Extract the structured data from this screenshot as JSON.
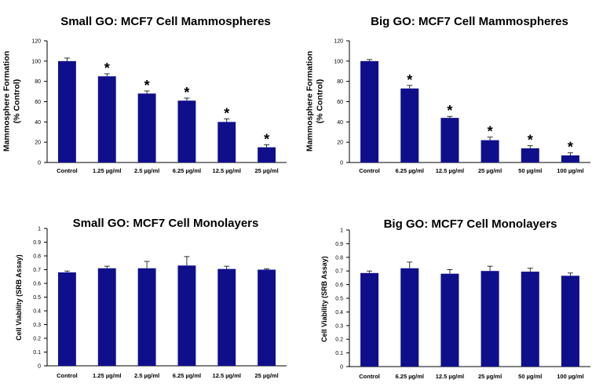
{
  "chart_data": [
    {
      "type": "bar",
      "title": "Small GO: MCF7 Cell Mammospheres",
      "ylabel": [
        "Mammosphere Formation",
        "(% Control)"
      ],
      "xlabel": "",
      "ylim": [
        0,
        120
      ],
      "yticks": [
        0,
        20,
        40,
        60,
        80,
        100,
        120
      ],
      "categories": [
        "Control",
        "1.25 µg/ml",
        "2.5 µg/ml",
        "6.25 µg/ml",
        "12.5 µg/ml",
        "25 µg/ml"
      ],
      "values": [
        100,
        85,
        68,
        61,
        40,
        15
      ],
      "errors": [
        3,
        2.5,
        2.5,
        2.5,
        3,
        2.5
      ],
      "significant": [
        false,
        true,
        true,
        true,
        true,
        true
      ],
      "significance_marker": "*"
    },
    {
      "type": "bar",
      "title": "Big GO: MCF7 Cell Mammospheres",
      "ylabel": [
        "Mammosphere Formation",
        "(% Control)"
      ],
      "xlabel": "",
      "ylim": [
        0,
        120
      ],
      "yticks": [
        0,
        20,
        40,
        60,
        80,
        100,
        120
      ],
      "categories": [
        "Control",
        "6.25 µg/ml",
        "12.5 µg/ml",
        "25 µg/ml",
        "50 µg/ml",
        "100 µg/ml"
      ],
      "values": [
        100,
        73,
        44,
        22,
        14,
        7
      ],
      "errors": [
        1.5,
        3,
        1.5,
        3,
        2.5,
        2.5
      ],
      "significant": [
        false,
        true,
        true,
        true,
        true,
        true
      ],
      "significance_marker": "*"
    },
    {
      "type": "bar",
      "title": "Small GO: MCF7 Cell Monolayers",
      "ylabel": [
        "Cell Viability (SRB Assay)"
      ],
      "xlabel": "",
      "ylim": [
        0,
        1
      ],
      "yticks": [
        0,
        0.1,
        0.2,
        0.3,
        0.4,
        0.5,
        0.6,
        0.7,
        0.8,
        0.9,
        1
      ],
      "categories": [
        "Control",
        "1.25 µg/ml",
        "2.5 µg/ml",
        "6.25 µg/ml",
        "12.5 µg/ml",
        "25 µg/ml"
      ],
      "values": [
        0.68,
        0.71,
        0.71,
        0.73,
        0.705,
        0.7
      ],
      "errors": [
        0.01,
        0.015,
        0.05,
        0.065,
        0.02,
        0.005
      ],
      "significant": [
        false,
        false,
        false,
        false,
        false,
        false
      ],
      "significance_marker": "*"
    },
    {
      "type": "bar",
      "title": "Big GO: MCF7 Cell Monolayers",
      "ylabel": [
        "Cell Viability (SRB Assay)"
      ],
      "xlabel": "",
      "ylim": [
        0,
        1
      ],
      "yticks": [
        0,
        0.1,
        0.2,
        0.3,
        0.4,
        0.5,
        0.6,
        0.7,
        0.8,
        0.9,
        1
      ],
      "categories": [
        "Control",
        "6.25 µg/ml",
        "12.5 µg/ml",
        "25 µg/ml",
        "50 µg/ml",
        "100 µg/ml"
      ],
      "values": [
        0.685,
        0.72,
        0.68,
        0.7,
        0.695,
        0.665
      ],
      "errors": [
        0.015,
        0.045,
        0.03,
        0.035,
        0.025,
        0.02
      ],
      "significant": [
        false,
        false,
        false,
        false,
        false,
        false
      ],
      "significance_marker": "*"
    }
  ],
  "colors": {
    "bar": "#0f0f8c",
    "axis": "#000000"
  }
}
